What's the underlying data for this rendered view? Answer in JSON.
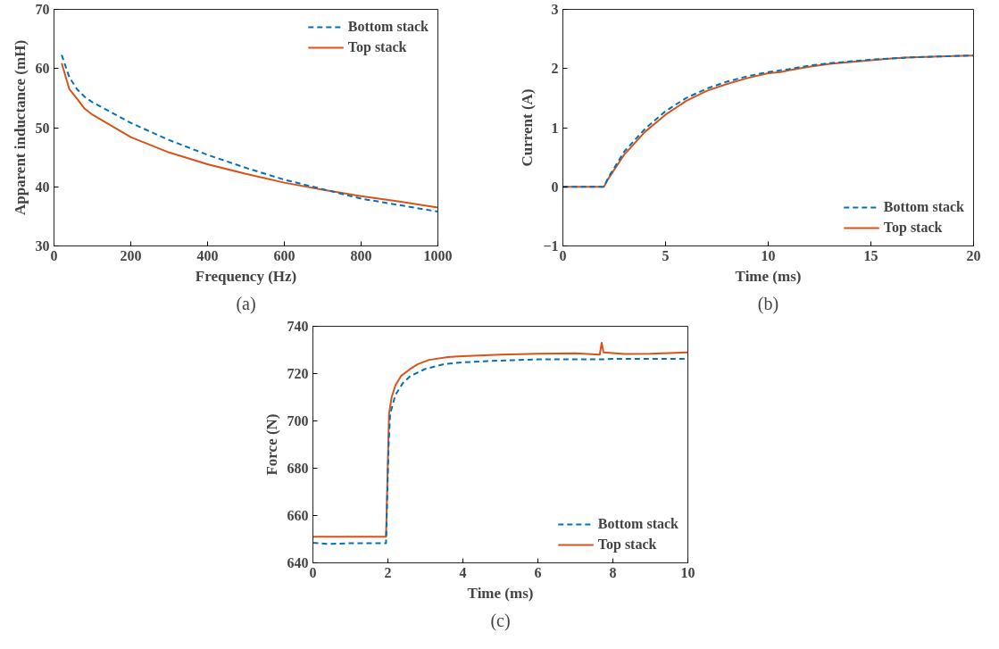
{
  "chart_data": [
    {
      "type": "line",
      "xlabel": "Frequency (Hz)",
      "ylabel": "Apparent inductance (mH)",
      "xlim": [
        0,
        1000
      ],
      "ylim": [
        30,
        70
      ],
      "xticks": [
        0,
        200,
        400,
        600,
        800,
        1000
      ],
      "yticks": [
        30,
        40,
        50,
        60,
        70
      ],
      "legend": "top right",
      "grid": false,
      "annotations": [
        "(a)"
      ],
      "series": [
        {
          "name": "Bottom stack",
          "color": "#0072bd",
          "line_style": "dashed",
          "x": [
            20,
            40,
            60,
            80,
            100,
            200,
            300,
            400,
            500,
            600,
            700,
            800,
            900,
            1000
          ],
          "values": [
            62.3,
            58.5,
            56.5,
            55.2,
            54.3,
            50.8,
            47.9,
            45.4,
            43.2,
            41.2,
            39.6,
            38.0,
            36.9,
            35.8
          ]
        },
        {
          "name": "Top stack",
          "color": "#d95319",
          "line_style": "solid",
          "x": [
            20,
            40,
            60,
            80,
            100,
            200,
            300,
            400,
            500,
            600,
            700,
            800,
            900,
            1000
          ],
          "values": [
            60.9,
            56.5,
            54.9,
            53.2,
            52.2,
            48.4,
            45.8,
            43.8,
            42.2,
            40.7,
            39.5,
            38.4,
            37.5,
            36.5
          ]
        }
      ]
    },
    {
      "type": "line",
      "xlabel": "Time (ms)",
      "ylabel": "Current (A)",
      "xlim": [
        0,
        20
      ],
      "ylim": [
        -1,
        3
      ],
      "xticks": [
        0,
        5,
        10,
        15,
        20
      ],
      "yticks": [
        -1,
        0,
        1,
        2,
        3
      ],
      "legend": "bottom right",
      "grid": false,
      "annotations": [
        "(b)"
      ],
      "series": [
        {
          "name": "Bottom stack",
          "color": "#0072bd",
          "line_style": "dashed",
          "x": [
            0,
            2,
            2.2,
            3,
            4,
            5,
            6,
            7,
            8,
            9,
            10,
            11,
            12,
            13,
            14,
            15,
            16,
            17,
            18,
            19,
            20
          ],
          "values": [
            0,
            0,
            0.15,
            0.6,
            0.98,
            1.28,
            1.5,
            1.66,
            1.78,
            1.87,
            1.94,
            1.99,
            2.05,
            2.09,
            2.12,
            2.15,
            2.17,
            2.19,
            2.2,
            2.21,
            2.22
          ]
        },
        {
          "name": "Top stack",
          "color": "#d95319",
          "line_style": "solid",
          "x": [
            0,
            2,
            2.2,
            3,
            4,
            5,
            6,
            7,
            8,
            9,
            10,
            10.6,
            11,
            12,
            13,
            14,
            15,
            16,
            17,
            18,
            19,
            20
          ],
          "values": [
            0,
            0,
            0.13,
            0.55,
            0.93,
            1.22,
            1.45,
            1.62,
            1.74,
            1.84,
            1.92,
            1.94,
            1.97,
            2.03,
            2.08,
            2.11,
            2.14,
            2.17,
            2.19,
            2.2,
            2.21,
            2.22
          ]
        }
      ]
    },
    {
      "type": "line",
      "xlabel": "Time (ms)",
      "ylabel": "Force (N)",
      "xlim": [
        0,
        10
      ],
      "ylim": [
        640,
        740
      ],
      "xticks": [
        0,
        2,
        4,
        6,
        8,
        10
      ],
      "yticks": [
        640,
        660,
        680,
        700,
        720,
        740
      ],
      "legend": "bottom right",
      "grid": false,
      "annotations": [
        "(c)"
      ],
      "series": [
        {
          "name": "Bottom stack",
          "color": "#0072bd",
          "line_style": "dashed",
          "x": [
            0,
            0.4,
            1,
            1.95,
            2.02,
            2.06,
            2.2,
            2.4,
            2.6,
            3,
            3.5,
            4,
            5,
            6,
            7,
            7.7,
            8,
            10
          ],
          "values": [
            648.5,
            648,
            648.3,
            648.3,
            690,
            703,
            711,
            716,
            719,
            722,
            724,
            724.8,
            725.5,
            726,
            726,
            726,
            726.2,
            726.2
          ]
        },
        {
          "name": "Top stack",
          "color": "#d95319",
          "line_style": "solid",
          "x": [
            0,
            1.95,
            2.03,
            2.1,
            2.2,
            2.35,
            2.6,
            2.8,
            3.1,
            3.6,
            4,
            5,
            6,
            7,
            7.65,
            7.7,
            7.75,
            8.3,
            9,
            10
          ],
          "values": [
            651,
            651,
            703,
            710,
            715,
            719,
            722,
            724,
            725.8,
            727,
            727.4,
            728,
            728.4,
            728.6,
            728,
            733,
            729,
            728.3,
            728.4,
            729
          ]
        }
      ]
    }
  ]
}
